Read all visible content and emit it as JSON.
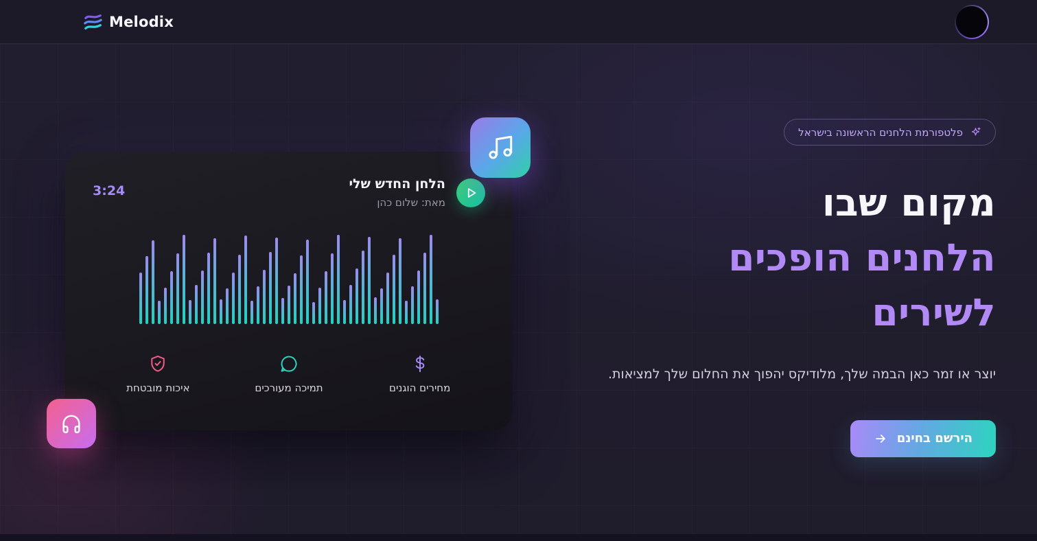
{
  "brand": {
    "name": "Melodix"
  },
  "hero": {
    "badge_label": "פלטפורמת הלחנים הראשונה בישראל",
    "title_line1": "מקום שבו",
    "title_line2": "הלחנים הופכים",
    "title_line3": "לשירים",
    "subtitle": "יוצר או זמר כאן הבמה שלך, מלודיקס יהפוך את החלום שלך למציאות.",
    "cta_label": "הירשם בחינם"
  },
  "player_card": {
    "track_title": "הלחן החדש שלי",
    "track_artist": "מאת: שלום כהן",
    "duration": "3:24",
    "waveform_bars_pct": [
      28,
      100,
      80,
      60,
      42,
      26,
      96,
      78,
      58,
      40,
      30,
      98,
      82,
      62,
      44,
      27,
      100,
      79,
      59,
      41,
      25,
      95,
      77,
      57,
      43,
      29,
      97,
      81,
      61,
      42,
      26,
      99,
      78,
      58,
      40,
      28,
      96,
      80,
      60,
      44,
      27,
      100,
      79,
      59,
      41,
      26,
      94,
      76,
      58
    ],
    "features": [
      {
        "label": "מחירים הוגנים",
        "icon": "dollar-icon",
        "color": "#a78bfa"
      },
      {
        "label": "תמיכה מעורכים",
        "icon": "chat-bubble-icon",
        "color": "#2dd4bf"
      },
      {
        "label": "איכות מובטחת",
        "icon": "shield-check-icon",
        "color": "#f25c87"
      }
    ]
  },
  "colors": {
    "page_background": "#201d2d",
    "card_background": "#1a191f",
    "accent_purple": "#a78bfa",
    "accent_teal": "#2dd4bf",
    "accent_pink": "#f25c87",
    "heading_purple": "#b18af5",
    "cta_gradient_from": "#a98af8",
    "cta_gradient_to": "#2dd4bf",
    "play_gradient_from": "#3ecf75",
    "play_gradient_to": "#14c3a2"
  }
}
